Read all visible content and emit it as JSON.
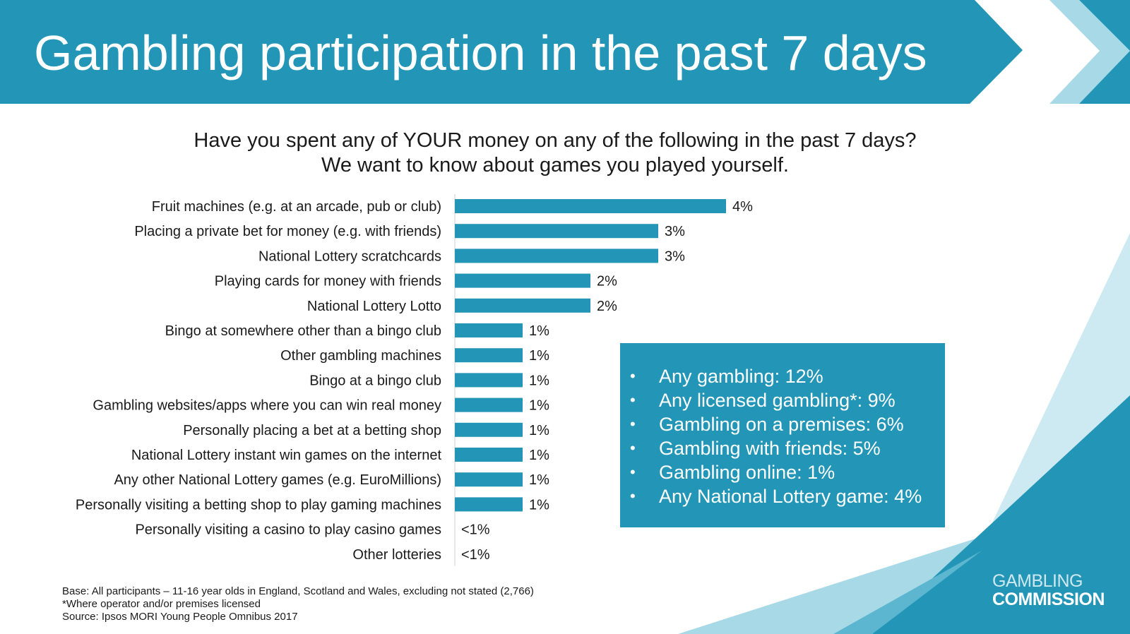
{
  "title": "Gambling participation in the past 7 days",
  "question": {
    "line1": "Have you spent any of YOUR money on any of the following in the past 7 days?",
    "line2": "We want to know about games you played yourself."
  },
  "colors": {
    "brand": "#2396b7",
    "brand_light": "#a8d9e7",
    "bar": "#2396b7",
    "text": "#1a1a1a"
  },
  "chart_data": {
    "type": "bar",
    "orientation": "horizontal",
    "title": "",
    "xlabel": "",
    "ylabel": "",
    "xlim": [
      0,
      4
    ],
    "categories": [
      "Fruit machines (e.g. at an arcade, pub or club)",
      "Placing a private bet for money (e.g. with friends)",
      "National Lottery scratchcards",
      "Playing cards for money with friends",
      "National Lottery Lotto",
      "Bingo at somewhere other than a bingo club",
      "Other gambling machines",
      "Bingo at a bingo club",
      "Gambling websites/apps where you can win real money",
      "Personally placing a bet at a betting shop",
      "National Lottery instant win games on the internet",
      "Any other National Lottery games (e.g. EuroMillions)",
      "Personally visiting a betting shop to play gaming machines",
      "Personally visiting a casino to play casino games",
      "Other lotteries"
    ],
    "values": [
      4,
      3,
      3,
      2,
      2,
      1,
      1,
      1,
      1,
      1,
      1,
      1,
      1,
      0,
      0
    ],
    "value_labels": [
      "4%",
      "3%",
      "3%",
      "2%",
      "2%",
      "1%",
      "1%",
      "1%",
      "1%",
      "1%",
      "1%",
      "1%",
      "1%",
      "<1%",
      "<1%"
    ]
  },
  "summary": {
    "items": [
      "Any gambling: 12%",
      "Any licensed gambling*: 9%",
      "Gambling on a premises: 6%",
      "Gambling with friends: 5%",
      "Gambling online: 1%",
      "Any National Lottery game: 4%"
    ]
  },
  "footnotes": {
    "base": "Base: All participants – 11-16 year olds in England, Scotland and Wales, excluding not stated (2,766)",
    "note": "*Where operator and/or premises licensed",
    "source": "Source: Ipsos MORI Young People Omnibus 2017"
  },
  "logo": {
    "line1": "GAMBLING",
    "line2": "COMMISSION"
  }
}
